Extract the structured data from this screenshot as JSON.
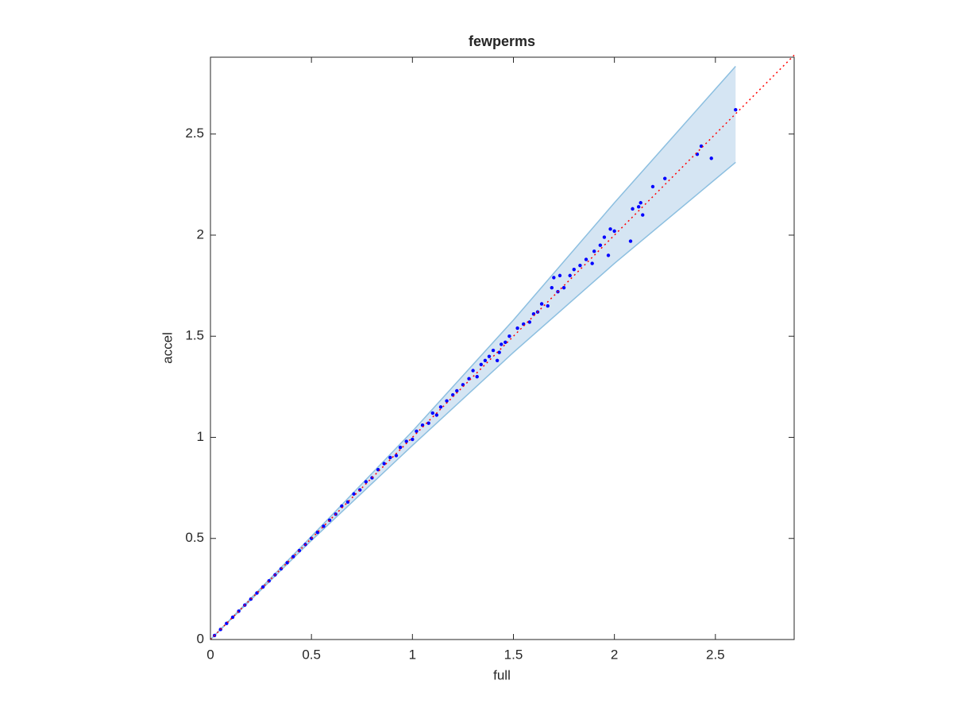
{
  "chart_data": {
    "type": "scatter",
    "title": "fewperms",
    "x_label": "full",
    "y_label": "accel",
    "xlim": [
      0,
      2.89
    ],
    "ylim": [
      0,
      2.88
    ],
    "xticks": [
      0,
      0.5,
      1,
      1.5,
      2,
      2.5
    ],
    "yticks": [
      0,
      0.5,
      1,
      1.5,
      2,
      2.5
    ],
    "band": {
      "color": "#d5e5f3",
      "edge_color": "#8cbfe0",
      "x": [
        0,
        0.5,
        1,
        1.5,
        2,
        2.6
      ],
      "upper": [
        0,
        0.51,
        1.03,
        1.58,
        2.16,
        2.835
      ],
      "lower": [
        0,
        0.49,
        0.96,
        1.42,
        1.86,
        2.36
      ]
    },
    "reference_line": {
      "color": "#ff0000",
      "x": [
        0,
        2.89
      ],
      "values": [
        0,
        2.89
      ]
    },
    "points": {
      "color": "#0000ff",
      "x": [
        2.6,
        2.48,
        2.43,
        2.41,
        2.25,
        2.19,
        2.13,
        2.12,
        2.14,
        2.09,
        2.08,
        2.0,
        1.98,
        1.97,
        1.95,
        1.93,
        1.9,
        1.89,
        1.86,
        1.83,
        1.8,
        1.78,
        1.75,
        1.73,
        1.7,
        1.72,
        1.69,
        1.67,
        1.64,
        1.62,
        1.6,
        1.58,
        1.55,
        1.52,
        1.48,
        1.46,
        1.44,
        1.43,
        1.42,
        1.4,
        1.38,
        1.36,
        1.34,
        1.32,
        1.3,
        1.28,
        1.25,
        1.22,
        1.2,
        1.17,
        1.14,
        1.12,
        1.1,
        1.08,
        1.05,
        1.02,
        1.0,
        0.97,
        0.94,
        0.92,
        0.89,
        0.86,
        0.83,
        0.8,
        0.77,
        0.74,
        0.71,
        0.68,
        0.65,
        0.62,
        0.59,
        0.56,
        0.53,
        0.5,
        0.47,
        0.44,
        0.41,
        0.38,
        0.35,
        0.32,
        0.29,
        0.26,
        0.23,
        0.2,
        0.17,
        0.14,
        0.11,
        0.08,
        0.05,
        0.02
      ],
      "values": [
        2.62,
        2.38,
        2.44,
        2.4,
        2.28,
        2.24,
        2.16,
        2.14,
        2.1,
        2.13,
        1.97,
        2.02,
        2.03,
        1.9,
        1.99,
        1.95,
        1.92,
        1.86,
        1.88,
        1.85,
        1.83,
        1.8,
        1.74,
        1.8,
        1.79,
        1.72,
        1.74,
        1.65,
        1.66,
        1.62,
        1.61,
        1.57,
        1.56,
        1.54,
        1.5,
        1.47,
        1.46,
        1.42,
        1.38,
        1.43,
        1.4,
        1.38,
        1.36,
        1.3,
        1.33,
        1.29,
        1.26,
        1.23,
        1.21,
        1.18,
        1.15,
        1.11,
        1.12,
        1.07,
        1.06,
        1.03,
        0.99,
        0.98,
        0.95,
        0.91,
        0.9,
        0.87,
        0.84,
        0.8,
        0.78,
        0.74,
        0.72,
        0.68,
        0.66,
        0.62,
        0.59,
        0.56,
        0.53,
        0.5,
        0.47,
        0.44,
        0.41,
        0.38,
        0.35,
        0.32,
        0.29,
        0.26,
        0.23,
        0.2,
        0.17,
        0.14,
        0.11,
        0.08,
        0.05,
        0.02
      ]
    }
  }
}
